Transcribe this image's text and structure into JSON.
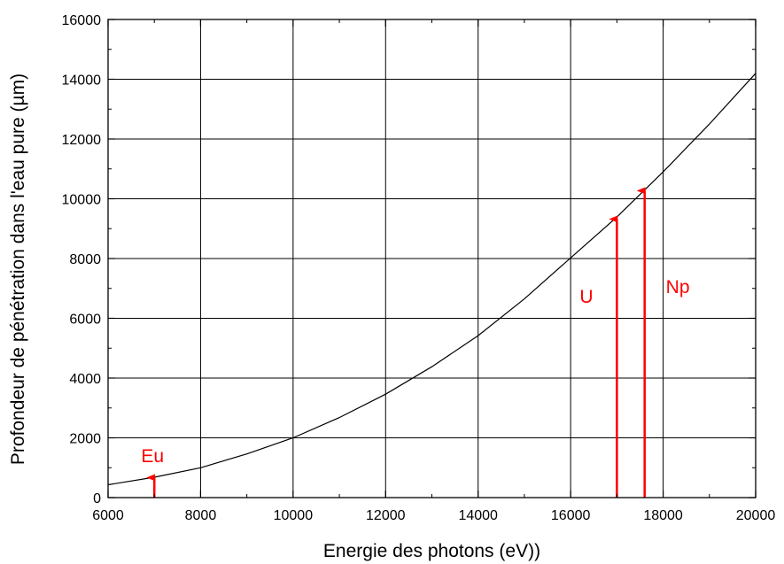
{
  "chart_data": {
    "type": "line",
    "title": "",
    "xlabel": "Energie des photons (eV))",
    "ylabel": "Profondeur de pénétration dans l'eau pure (µm)",
    "xlim": [
      6000,
      20000
    ],
    "ylim": [
      0,
      16000
    ],
    "xticks": [
      6000,
      8000,
      10000,
      12000,
      14000,
      16000,
      18000,
      20000
    ],
    "yticks": [
      0,
      2000,
      4000,
      6000,
      8000,
      10000,
      12000,
      14000,
      16000
    ],
    "xtick_labels": [
      "6000",
      "8000",
      "10000",
      "12000",
      "14000",
      "16000",
      "18000",
      "20000"
    ],
    "ytick_labels": [
      "0",
      "2000",
      "4000",
      "6000",
      "8000",
      "10000",
      "12000",
      "14000",
      "16000"
    ],
    "grid": true,
    "legend": "none",
    "series": [
      {
        "color": "#000000",
        "x": [
          6000,
          7000,
          8000,
          9000,
          10000,
          11000,
          12000,
          13000,
          14000,
          15000,
          16000,
          17000,
          18000,
          19000,
          20000
        ],
        "y": [
          430,
          680,
          1000,
          1460,
          2000,
          2680,
          3460,
          4380,
          5420,
          6650,
          8020,
          9390,
          10900,
          12500,
          14200
        ]
      }
    ],
    "annotations": [
      {
        "label": "Eu",
        "x": 7000,
        "y_from": 0,
        "y_to": 700,
        "color": "#ff0000"
      },
      {
        "label": "U",
        "x": 17000,
        "y_from": 0,
        "y_to": 9350,
        "color": "#ff0000"
      },
      {
        "label": "Np",
        "x": 17600,
        "y_from": 0,
        "y_to": 10300,
        "color": "#ff0000"
      }
    ]
  }
}
